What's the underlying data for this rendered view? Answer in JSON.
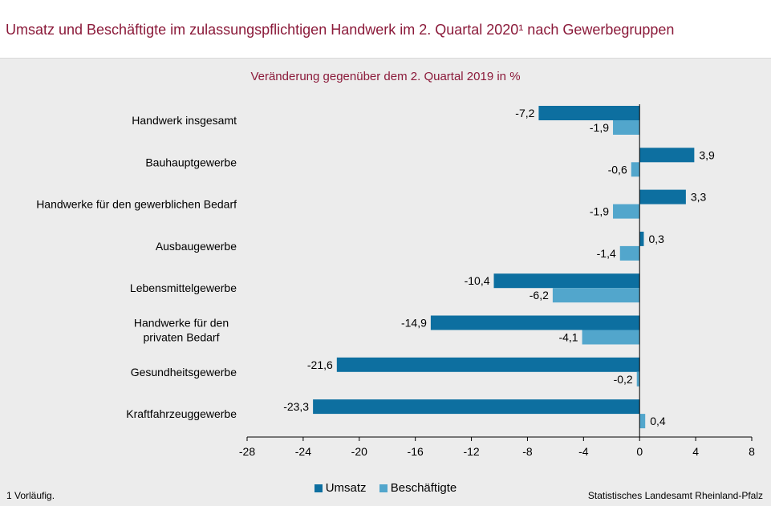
{
  "title": "Umsatz und Beschäftigte im zulassungspflichtigen Handwerk im 2. Quartal 2020¹ nach Gewerbegruppen",
  "subtitle": "Veränderung gegenüber dem 2. Quartal 2019 in %",
  "footnote": "1 Vorläufig.",
  "source": "Statistisches Landesamt Rheinland-Pfalz",
  "colors": {
    "umsatz": "#0d6fa0",
    "beschaeftigte": "#52a6cc"
  },
  "chart_data": {
    "type": "bar",
    "orientation": "horizontal",
    "categories": [
      [
        "Handwerk insgesamt"
      ],
      [
        "Bauhauptgewerbe"
      ],
      [
        "Handwerke für den gewerblichen Bedarf"
      ],
      [
        "Ausbaugewerbe"
      ],
      [
        "Lebensmittelgewerbe"
      ],
      [
        "Handwerke für den",
        "privaten Bedarf"
      ],
      [
        "Gesundheitsgewerbe"
      ],
      [
        "Kraftfahrzeuggewerbe"
      ]
    ],
    "series": [
      {
        "name": "Umsatz",
        "values": [
          -7.2,
          3.9,
          3.3,
          0.3,
          -10.4,
          -14.9,
          -21.6,
          -23.3
        ],
        "labels": [
          "-7,2",
          "3,9",
          "3,3",
          "0,3",
          "-10,4",
          "-14,9",
          "-21,6",
          "-23,3"
        ]
      },
      {
        "name": "Beschäftigte",
        "values": [
          -1.9,
          -0.6,
          -1.9,
          -1.4,
          -6.2,
          -4.1,
          -0.2,
          0.4
        ],
        "labels": [
          "-1,9",
          "-0,6",
          "-1,9",
          "-1,4",
          "-6,2",
          "-4,1",
          "-0,2",
          "0,4"
        ]
      }
    ],
    "xlim": [
      -28,
      8
    ],
    "xticks": [
      -28,
      -24,
      -20,
      -16,
      -12,
      -8,
      -4,
      0,
      4,
      8
    ],
    "xtick_labels": [
      "-28",
      "-24",
      "-20",
      "-16",
      "-12",
      "-8",
      "-4",
      "0",
      "4",
      "8"
    ],
    "grid": false,
    "legend_position": "bottom"
  }
}
